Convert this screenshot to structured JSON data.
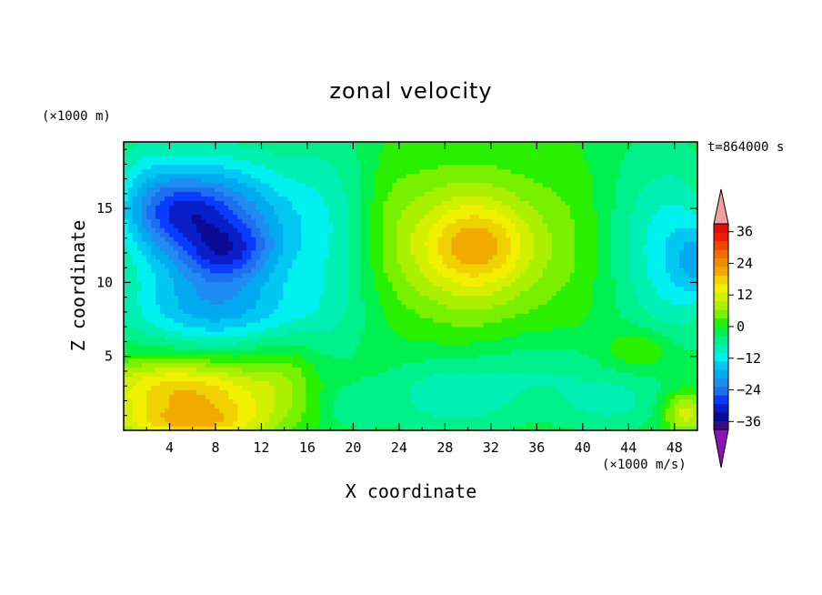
{
  "chart_data": {
    "type": "heatmap",
    "title": "zonal velocity",
    "xlabel": "X coordinate",
    "ylabel": "Z coordinate",
    "x_unit_label": "(×1000 m/s)",
    "z_unit_label": "(×1000 m)",
    "time_label": "t=864000 s",
    "xlim": [
      0,
      50
    ],
    "ylim": [
      0,
      19.5
    ],
    "x_ticks": [
      4,
      8,
      12,
      16,
      20,
      24,
      28,
      32,
      36,
      40,
      44,
      48
    ],
    "y_ticks": [
      5,
      10,
      15
    ],
    "colorbar": {
      "levels": [
        -42,
        -39,
        -36,
        -33,
        -30,
        -27,
        -24,
        -21,
        -18,
        -15,
        -12,
        -9,
        -6,
        -3,
        0,
        3,
        6,
        9,
        12,
        15,
        18,
        21,
        24,
        27,
        30,
        33,
        36,
        39
      ],
      "colors": [
        "#3c0a82",
        "#0a0a96",
        "#0a1ec8",
        "#0a3cff",
        "#1e6ef0",
        "#1e8cf0",
        "#00aaf0",
        "#00c8f0",
        "#00f0f0",
        "#00f0b4",
        "#00f08c",
        "#00f050",
        "#28f000",
        "#78f000",
        "#aaf000",
        "#d2f000",
        "#f0f000",
        "#f0d200",
        "#f0aa00",
        "#f08c00",
        "#f06e00",
        "#f04600",
        "#f01e00",
        "#e60a0a"
      ],
      "tick_labels": [
        "36",
        "24",
        "12",
        "0",
        "-12",
        "-24",
        "-36"
      ],
      "tick_values": [
        36,
        24,
        12,
        0,
        -12,
        -24,
        -36
      ],
      "over_color": "#f0a0a0",
      "under_color": "#8c14b4"
    },
    "field_blobs": [
      {
        "x": 8,
        "z": 14,
        "rx": 7,
        "rz": 4.5,
        "value": -22
      },
      {
        "x": 9,
        "z": 12,
        "rx": 4,
        "rz": 2,
        "value": -10
      },
      {
        "x": 5,
        "z": 15,
        "rx": 3.5,
        "rz": 2,
        "value": -8
      },
      {
        "x": 2,
        "z": 16,
        "rx": 3,
        "rz": 4,
        "value": -6
      },
      {
        "x": 8,
        "z": 8,
        "rx": 8,
        "rz": 2.5,
        "value": -12
      },
      {
        "x": 18,
        "z": 13,
        "rx": 4,
        "rz": 8,
        "value": -6
      },
      {
        "x": 30,
        "z": 12.5,
        "rx": 7,
        "rz": 5,
        "value": 14
      },
      {
        "x": 31,
        "z": 12.5,
        "rx": 4,
        "rz": 2.5,
        "value": 8
      },
      {
        "x": 23,
        "z": 15,
        "rx": 2.5,
        "rz": 6,
        "value": 2
      },
      {
        "x": 39,
        "z": 13,
        "rx": 3.5,
        "rz": 7,
        "value": 2
      },
      {
        "x": 48,
        "z": 12,
        "rx": 3.5,
        "rz": 6,
        "value": -10
      },
      {
        "x": 50,
        "z": 11.5,
        "rx": 1.8,
        "rz": 2.5,
        "value": -8
      },
      {
        "x": 44,
        "z": 13,
        "rx": 3,
        "rz": 7,
        "value": -3
      },
      {
        "x": 6,
        "z": 2,
        "rx": 8,
        "rz": 2.5,
        "value": 18
      },
      {
        "x": 6,
        "z": 0.5,
        "rx": 6,
        "rz": 1,
        "value": 8
      },
      {
        "x": 3,
        "z": 3.5,
        "rx": 6,
        "rz": 1.5,
        "value": 4
      },
      {
        "x": 29,
        "z": 2.5,
        "rx": 6,
        "rz": 2.5,
        "value": -8
      },
      {
        "x": 42,
        "z": 2,
        "rx": 5,
        "rz": 2,
        "value": -6
      },
      {
        "x": 37,
        "z": 4.5,
        "rx": 5,
        "rz": 2,
        "value": -4
      },
      {
        "x": 20,
        "z": 1.5,
        "rx": 3,
        "rz": 1.5,
        "value": -4
      },
      {
        "x": 49,
        "z": 1.2,
        "rx": 2,
        "rz": 1.5,
        "value": 12
      },
      {
        "x": 45,
        "z": 5.5,
        "rx": 3,
        "rz": 1.5,
        "value": 6
      },
      {
        "x": 14,
        "z": 4,
        "rx": 3,
        "rz": 2.5,
        "value": 4
      }
    ],
    "field_background": -1
  }
}
